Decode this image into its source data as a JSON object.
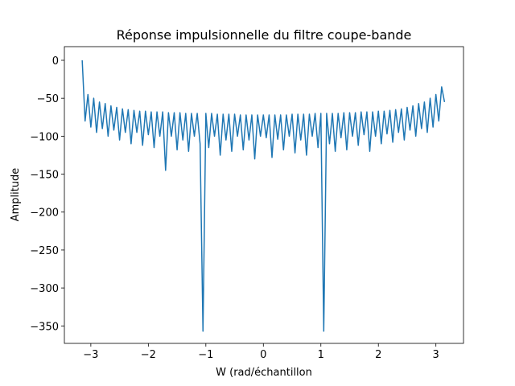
{
  "chart_data": {
    "type": "line",
    "title": "Réponse impulsionnelle du filtre coupe-bande",
    "x_label": "W (rad/échantillon",
    "y_label": "Amplitude",
    "color": "#1f77b4",
    "xlim": [
      -3.46,
      3.48
    ],
    "ylim": [
      -373,
      18
    ],
    "xticks": [
      {
        "value": -3,
        "label": "−3"
      },
      {
        "value": -2,
        "label": "−2"
      },
      {
        "value": -1,
        "label": "−1"
      },
      0,
      1,
      2,
      3
    ],
    "yticks": [
      0,
      {
        "value": -50,
        "label": "−50"
      },
      {
        "value": -100,
        "label": "−100"
      },
      {
        "value": -150,
        "label": "−150"
      },
      {
        "value": -200,
        "label": "−200"
      },
      {
        "value": -250,
        "label": "−250"
      },
      {
        "value": -300,
        "label": "−300"
      },
      {
        "value": -350,
        "label": "−350"
      }
    ],
    "x": [
      -3.15,
      -3.1,
      -3.05,
      -3.0,
      -2.95,
      -2.9,
      -2.85,
      -2.8,
      -2.75,
      -2.7,
      -2.65,
      -2.6,
      -2.55,
      -2.5,
      -2.45,
      -2.4,
      -2.35,
      -2.3,
      -2.25,
      -2.2,
      -2.15,
      -2.1,
      -2.05,
      -2.0,
      -1.95,
      -1.9,
      -1.85,
      -1.8,
      -1.75,
      -1.7,
      -1.65,
      -1.6,
      -1.55,
      -1.5,
      -1.45,
      -1.4,
      -1.35,
      -1.3,
      -1.25,
      -1.2,
      -1.15,
      -1.1,
      -1.05,
      -1.0,
      -0.95,
      -0.9,
      -0.85,
      -0.8,
      -0.75,
      -0.7,
      -0.65,
      -0.6,
      -0.55,
      -0.5,
      -0.45,
      -0.4,
      -0.35,
      -0.3,
      -0.25,
      -0.2,
      -0.15,
      -0.1,
      -0.05,
      0.0,
      0.05,
      0.1,
      0.15,
      0.2,
      0.25,
      0.3,
      0.35,
      0.4,
      0.45,
      0.5,
      0.55,
      0.6,
      0.65,
      0.7,
      0.75,
      0.8,
      0.85,
      0.9,
      0.95,
      1.0,
      1.05,
      1.1,
      1.15,
      1.2,
      1.25,
      1.3,
      1.35,
      1.4,
      1.45,
      1.5,
      1.55,
      1.6,
      1.65,
      1.7,
      1.75,
      1.8,
      1.85,
      1.9,
      1.95,
      2.0,
      2.05,
      2.1,
      2.15,
      2.2,
      2.25,
      2.3,
      2.35,
      2.4,
      2.45,
      2.5,
      2.55,
      2.6,
      2.65,
      2.7,
      2.75,
      2.8,
      2.85,
      2.9,
      2.95,
      3.0,
      3.05,
      3.1,
      3.15
    ],
    "values": [
      0,
      -80,
      -45,
      -88,
      -50,
      -95,
      -55,
      -90,
      -57,
      -100,
      -60,
      -92,
      -62,
      -105,
      -64,
      -95,
      -65,
      -110,
      -66,
      -95,
      -67,
      -112,
      -67,
      -98,
      -68,
      -115,
      -68,
      -100,
      -68,
      -145,
      -69,
      -100,
      -69,
      -118,
      -69,
      -105,
      -70,
      -120,
      -70,
      -100,
      -70,
      -110,
      -357,
      -70,
      -115,
      -70,
      -100,
      -71,
      -125,
      -71,
      -105,
      -71,
      -120,
      -71,
      -100,
      -72,
      -118,
      -72,
      -105,
      -72,
      -130,
      -72,
      -100,
      -72,
      -102,
      -72,
      -128,
      -72,
      -104,
      -72,
      -118,
      -72,
      -100,
      -71,
      -122,
      -71,
      -105,
      -71,
      -125,
      -71,
      -100,
      -70,
      -115,
      -70,
      -357,
      -70,
      -110,
      -70,
      -120,
      -70,
      -102,
      -69,
      -118,
      -69,
      -100,
      -69,
      -112,
      -68,
      -98,
      -68,
      -120,
      -68,
      -100,
      -67,
      -110,
      -67,
      -97,
      -66,
      -108,
      -65,
      -95,
      -64,
      -105,
      -62,
      -92,
      -60,
      -100,
      -57,
      -90,
      -55,
      -95,
      -50,
      -88,
      -45,
      -80,
      -35,
      -55
    ]
  }
}
